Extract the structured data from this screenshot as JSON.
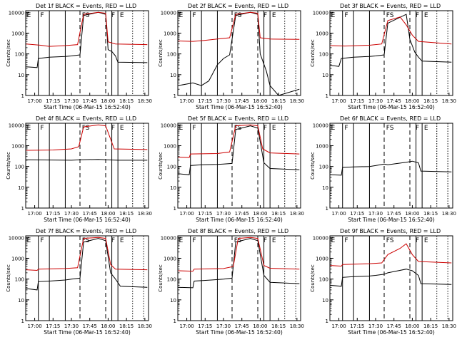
{
  "chart_data": [
    {
      "type": "line",
      "title": "Det 1f  BLACK = Events, RED = LLD",
      "ylabel": "Counts/sec",
      "xlabel": "Start Time (06-Mar-15 16:52:40)",
      "x_ticks": [
        "17:00",
        "17:15",
        "17:30",
        "17:45",
        "18:00",
        "18:15",
        "18:30"
      ],
      "y_ticks": [
        "1",
        "10",
        "100",
        "1000",
        "10000"
      ],
      "y_scale": "log",
      "ylim": [
        1,
        12000
      ],
      "xlim": [
        "16:52:40",
        "18:33:00"
      ],
      "region_labels": [
        "E",
        "F",
        "FS",
        "F",
        "E"
      ],
      "series": [
        {
          "color": "#000000",
          "x": [
            "16:53",
            "17:02",
            "17:03",
            "17:12",
            "17:25",
            "17:30",
            "17:37",
            "17:40",
            "17:52",
            "17:58",
            "18:00",
            "18:03",
            "18:06",
            "18:08",
            "18:32"
          ],
          "y": [
            24,
            22,
            60,
            70,
            75,
            80,
            90,
            7000,
            10000,
            8000,
            160,
            130,
            80,
            40,
            38
          ]
        },
        {
          "color": "#cc0000",
          "x": [
            "16:53",
            "17:05",
            "17:12",
            "17:25",
            "17:35",
            "17:40",
            "17:52",
            "17:58",
            "18:00",
            "18:06",
            "18:32"
          ],
          "y": [
            300,
            260,
            230,
            250,
            280,
            8000,
            10000,
            9000,
            380,
            300,
            280
          ]
        }
      ]
    },
    {
      "type": "line",
      "title": "Det 2f  BLACK = Events, RED = LLD",
      "ylabel": "Counts/sec",
      "xlabel": "Start Time (06-Mar-15 16:52:40)",
      "x_ticks": [
        "17:00",
        "17:15",
        "17:30",
        "17:45",
        "18:00",
        "18:15",
        "18:30"
      ],
      "y_ticks": [
        "1",
        "10",
        "100",
        "1000",
        "10000"
      ],
      "y_scale": "log",
      "ylim": [
        1,
        12000
      ],
      "xlim": [
        "16:52:40",
        "18:33:00"
      ],
      "region_labels": [
        "E",
        "F",
        "FS",
        "F",
        "E"
      ],
      "series": [
        {
          "color": "#000000",
          "x": [
            "16:53",
            "17:05",
            "17:12",
            "17:18",
            "17:25",
            "17:30",
            "17:35",
            "17:40",
            "17:52",
            "17:58",
            "18:00",
            "18:05",
            "18:08",
            "18:15",
            "18:32"
          ],
          "y": [
            3,
            4,
            3,
            5,
            30,
            60,
            90,
            7000,
            10000,
            8000,
            100,
            15,
            3,
            1,
            2
          ]
        },
        {
          "color": "#cc0000",
          "x": [
            "16:53",
            "17:05",
            "17:15",
            "17:25",
            "17:35",
            "17:40",
            "17:52",
            "17:58",
            "18:00",
            "18:08",
            "18:32"
          ],
          "y": [
            420,
            400,
            450,
            520,
            600,
            8000,
            10000,
            9000,
            600,
            520,
            500
          ]
        }
      ]
    },
    {
      "type": "line",
      "title": "Det 3f  BLACK = Events, RED = LLD",
      "ylabel": "Counts/sec",
      "xlabel": "Start Time (06-Mar-15 16:52:40)",
      "x_ticks": [
        "17:00",
        "17:15",
        "17:30",
        "17:45",
        "18:00",
        "18:15",
        "18:30"
      ],
      "y_ticks": [
        "1",
        "10",
        "100",
        "1000",
        "10000"
      ],
      "y_scale": "log",
      "ylim": [
        1,
        12000
      ],
      "xlim": [
        "16:52:40",
        "18:33:00"
      ],
      "region_labels": [
        "E",
        "F",
        "FS",
        "F",
        "E"
      ],
      "series": [
        {
          "color": "#000000",
          "x": [
            "16:53",
            "17:00",
            "17:02",
            "17:12",
            "17:25",
            "17:30",
            "17:37",
            "17:40",
            "17:55",
            "17:58",
            "18:02",
            "18:05",
            "18:08",
            "18:32"
          ],
          "y": [
            28,
            25,
            60,
            70,
            75,
            80,
            90,
            3000,
            8000,
            500,
            120,
            70,
            45,
            40
          ]
        },
        {
          "color": "#cc0000",
          "x": [
            "16:53",
            "17:05",
            "17:25",
            "17:35",
            "17:40",
            "17:50",
            "17:55",
            "18:00",
            "18:05",
            "18:32"
          ],
          "y": [
            250,
            240,
            260,
            300,
            4000,
            6000,
            2500,
            800,
            400,
            300
          ]
        }
      ]
    },
    {
      "type": "line",
      "title": "Det 4f  BLACK = Events, RED = LLD",
      "ylabel": "Counts/sec",
      "xlabel": "Start Time (06-Mar-15 16:52:40)",
      "x_ticks": [
        "17:00",
        "17:15",
        "17:30",
        "17:45",
        "18:00",
        "18:15",
        "18:30"
      ],
      "y_ticks": [
        "1",
        "10",
        "100",
        "1000",
        "10000"
      ],
      "y_scale": "log",
      "ylim": [
        1,
        12000
      ],
      "xlim": [
        "16:52:40",
        "18:33:00"
      ],
      "region_labels": [
        "E",
        "F",
        "FS",
        "F",
        "E"
      ],
      "series": [
        {
          "color": "#000000",
          "x": [
            "16:53",
            "17:30",
            "17:37",
            "17:52",
            "17:58",
            "18:08",
            "18:32"
          ],
          "y": [
            210,
            200,
            210,
            220,
            210,
            200,
            200
          ]
        },
        {
          "color": "#cc0000",
          "x": [
            "16:53",
            "17:15",
            "17:30",
            "17:36",
            "17:40",
            "17:52",
            "17:58",
            "18:05",
            "18:32"
          ],
          "y": [
            600,
            620,
            700,
            900,
            8000,
            10000,
            9000,
            700,
            650
          ]
        }
      ]
    },
    {
      "type": "line",
      "title": "Det 5f  BLACK = Events, RED = LLD",
      "ylabel": "Counts/sec",
      "xlabel": "Start Time (06-Mar-15 16:52:40)",
      "x_ticks": [
        "17:00",
        "17:15",
        "17:30",
        "17:45",
        "18:00",
        "18:15",
        "18:30"
      ],
      "y_ticks": [
        "1",
        "10",
        "100",
        "1000",
        "10000"
      ],
      "y_scale": "log",
      "ylim": [
        1,
        12000
      ],
      "xlim": [
        "16:52:40",
        "18:33:00"
      ],
      "region_labels": [
        "E",
        "F",
        "FS",
        "F",
        "E"
      ],
      "series": [
        {
          "color": "#000000",
          "x": [
            "16:53",
            "17:02",
            "17:03",
            "17:12",
            "17:25",
            "17:30",
            "17:37",
            "17:40",
            "17:52",
            "17:58",
            "18:03",
            "18:08",
            "18:32"
          ],
          "y": [
            45,
            40,
            110,
            120,
            125,
            130,
            140,
            6000,
            9000,
            7000,
            150,
            80,
            70
          ]
        },
        {
          "color": "#cc0000",
          "x": [
            "16:53",
            "17:02",
            "17:03",
            "17:25",
            "17:35",
            "17:40",
            "17:52",
            "17:58",
            "18:02",
            "18:08",
            "18:32"
          ],
          "y": [
            280,
            270,
            400,
            420,
            500,
            9000,
            10000,
            9000,
            700,
            450,
            400
          ]
        }
      ]
    },
    {
      "type": "line",
      "title": "Det 6f  BLACK = Events, RED = LLD",
      "ylabel": "Counts/sec",
      "xlabel": "Start Time (06-Mar-15 16:52:40)",
      "x_ticks": [
        "17:00",
        "17:15",
        "17:30",
        "17:45",
        "18:00",
        "18:15",
        "18:30"
      ],
      "y_ticks": [
        "1",
        "10",
        "100",
        "1000",
        "10000"
      ],
      "y_scale": "log",
      "ylim": [
        1,
        12000
      ],
      "xlim": [
        "16:52:40",
        "18:33:00"
      ],
      "region_labels": [
        "E",
        "F",
        "FS",
        "F",
        "E"
      ],
      "series": [
        {
          "color": "#000000",
          "x": [
            "16:53",
            "17:02",
            "17:03",
            "17:12",
            "17:25",
            "17:30",
            "17:37",
            "17:40",
            "17:55",
            "18:00",
            "18:05",
            "18:07",
            "18:32"
          ],
          "y": [
            40,
            38,
            90,
            95,
            100,
            110,
            130,
            120,
            160,
            180,
            150,
            60,
            55
          ]
        }
      ]
    },
    {
      "type": "line",
      "title": "Det 7f  BLACK = Events, RED = LLD",
      "ylabel": "Counts/sec",
      "xlabel": "Start Time (06-Mar-15 16:52:40)",
      "x_ticks": [
        "17:00",
        "17:15",
        "17:30",
        "17:45",
        "18:00",
        "18:15",
        "18:30"
      ],
      "y_ticks": [
        "1",
        "10",
        "100",
        "1000",
        "10000"
      ],
      "y_scale": "log",
      "ylim": [
        1,
        12000
      ],
      "xlim": [
        "16:52:40",
        "18:33:00"
      ],
      "region_labels": [
        "E",
        "F",
        "FS",
        "F",
        "E"
      ],
      "series": [
        {
          "color": "#000000",
          "x": [
            "16:53",
            "17:02",
            "17:03",
            "17:12",
            "17:25",
            "17:30",
            "17:37",
            "17:40",
            "17:52",
            "17:58",
            "18:02",
            "18:06",
            "18:10",
            "18:32"
          ],
          "y": [
            35,
            30,
            75,
            80,
            90,
            100,
            110,
            6000,
            9000,
            7000,
            200,
            100,
            45,
            40
          ]
        },
        {
          "color": "#cc0000",
          "x": [
            "16:53",
            "17:02",
            "17:03",
            "17:25",
            "17:35",
            "17:40",
            "17:52",
            "17:58",
            "18:02",
            "18:06",
            "18:32"
          ],
          "y": [
            280,
            260,
            300,
            320,
            350,
            9000,
            10000,
            9000,
            500,
            300,
            280
          ]
        }
      ]
    },
    {
      "type": "line",
      "title": "Det 8f  BLACK = Events, RED = LLD",
      "ylabel": "Counts/sec",
      "xlabel": "Start Time (06-Mar-15 16:52:40)",
      "x_ticks": [
        "17:00",
        "17:15",
        "17:30",
        "17:45",
        "18:00",
        "18:15",
        "18:30"
      ],
      "y_ticks": [
        "1",
        "10",
        "100",
        "1000",
        "10000"
      ],
      "y_scale": "log",
      "ylim": [
        1,
        12000
      ],
      "xlim": [
        "16:52:40",
        "18:33:00"
      ],
      "region_labels": [
        "E",
        "F",
        "FS",
        "F",
        "E"
      ],
      "series": [
        {
          "color": "#000000",
          "x": [
            "16:53",
            "17:05",
            "17:06",
            "17:20",
            "17:30",
            "17:37",
            "17:40",
            "17:52",
            "17:58",
            "18:03",
            "18:08",
            "18:32"
          ],
          "y": [
            40,
            38,
            80,
            90,
            100,
            110,
            6000,
            9000,
            7000,
            150,
            70,
            60
          ]
        },
        {
          "color": "#cc0000",
          "x": [
            "16:53",
            "17:05",
            "17:06",
            "17:30",
            "17:38",
            "17:42",
            "17:52",
            "17:58",
            "18:03",
            "18:08",
            "18:32"
          ],
          "y": [
            250,
            240,
            300,
            320,
            400,
            9000,
            10000,
            9000,
            450,
            330,
            300
          ]
        }
      ]
    },
    {
      "type": "line",
      "title": "Det 9f  BLACK = Events, RED = LLD",
      "ylabel": "Counts/sec",
      "xlabel": "Start Time (06-Mar-15 16:52:40)",
      "x_ticks": [
        "17:00",
        "17:15",
        "17:30",
        "17:45",
        "18:00",
        "18:15",
        "18:30"
      ],
      "y_ticks": [
        "1",
        "10",
        "100",
        "1000",
        "10000"
      ],
      "y_scale": "log",
      "ylim": [
        1,
        12000
      ],
      "xlim": [
        "16:52:40",
        "18:33:00"
      ],
      "region_labels": [
        "E",
        "F",
        "FS",
        "F",
        "E"
      ],
      "series": [
        {
          "color": "#000000",
          "x": [
            "16:53",
            "17:02",
            "17:03",
            "17:12",
            "17:25",
            "17:30",
            "17:37",
            "17:40",
            "17:55",
            "18:00",
            "18:05",
            "18:07",
            "18:32"
          ],
          "y": [
            50,
            45,
            120,
            130,
            140,
            150,
            170,
            200,
            300,
            250,
            150,
            60,
            55
          ]
        },
        {
          "color": "#cc0000",
          "x": [
            "16:53",
            "17:02",
            "17:03",
            "17:25",
            "17:35",
            "17:40",
            "17:50",
            "17:55",
            "18:00",
            "18:05",
            "18:32"
          ],
          "y": [
            450,
            420,
            500,
            550,
            600,
            1500,
            3000,
            5000,
            1500,
            700,
            600
          ]
        }
      ]
    }
  ]
}
